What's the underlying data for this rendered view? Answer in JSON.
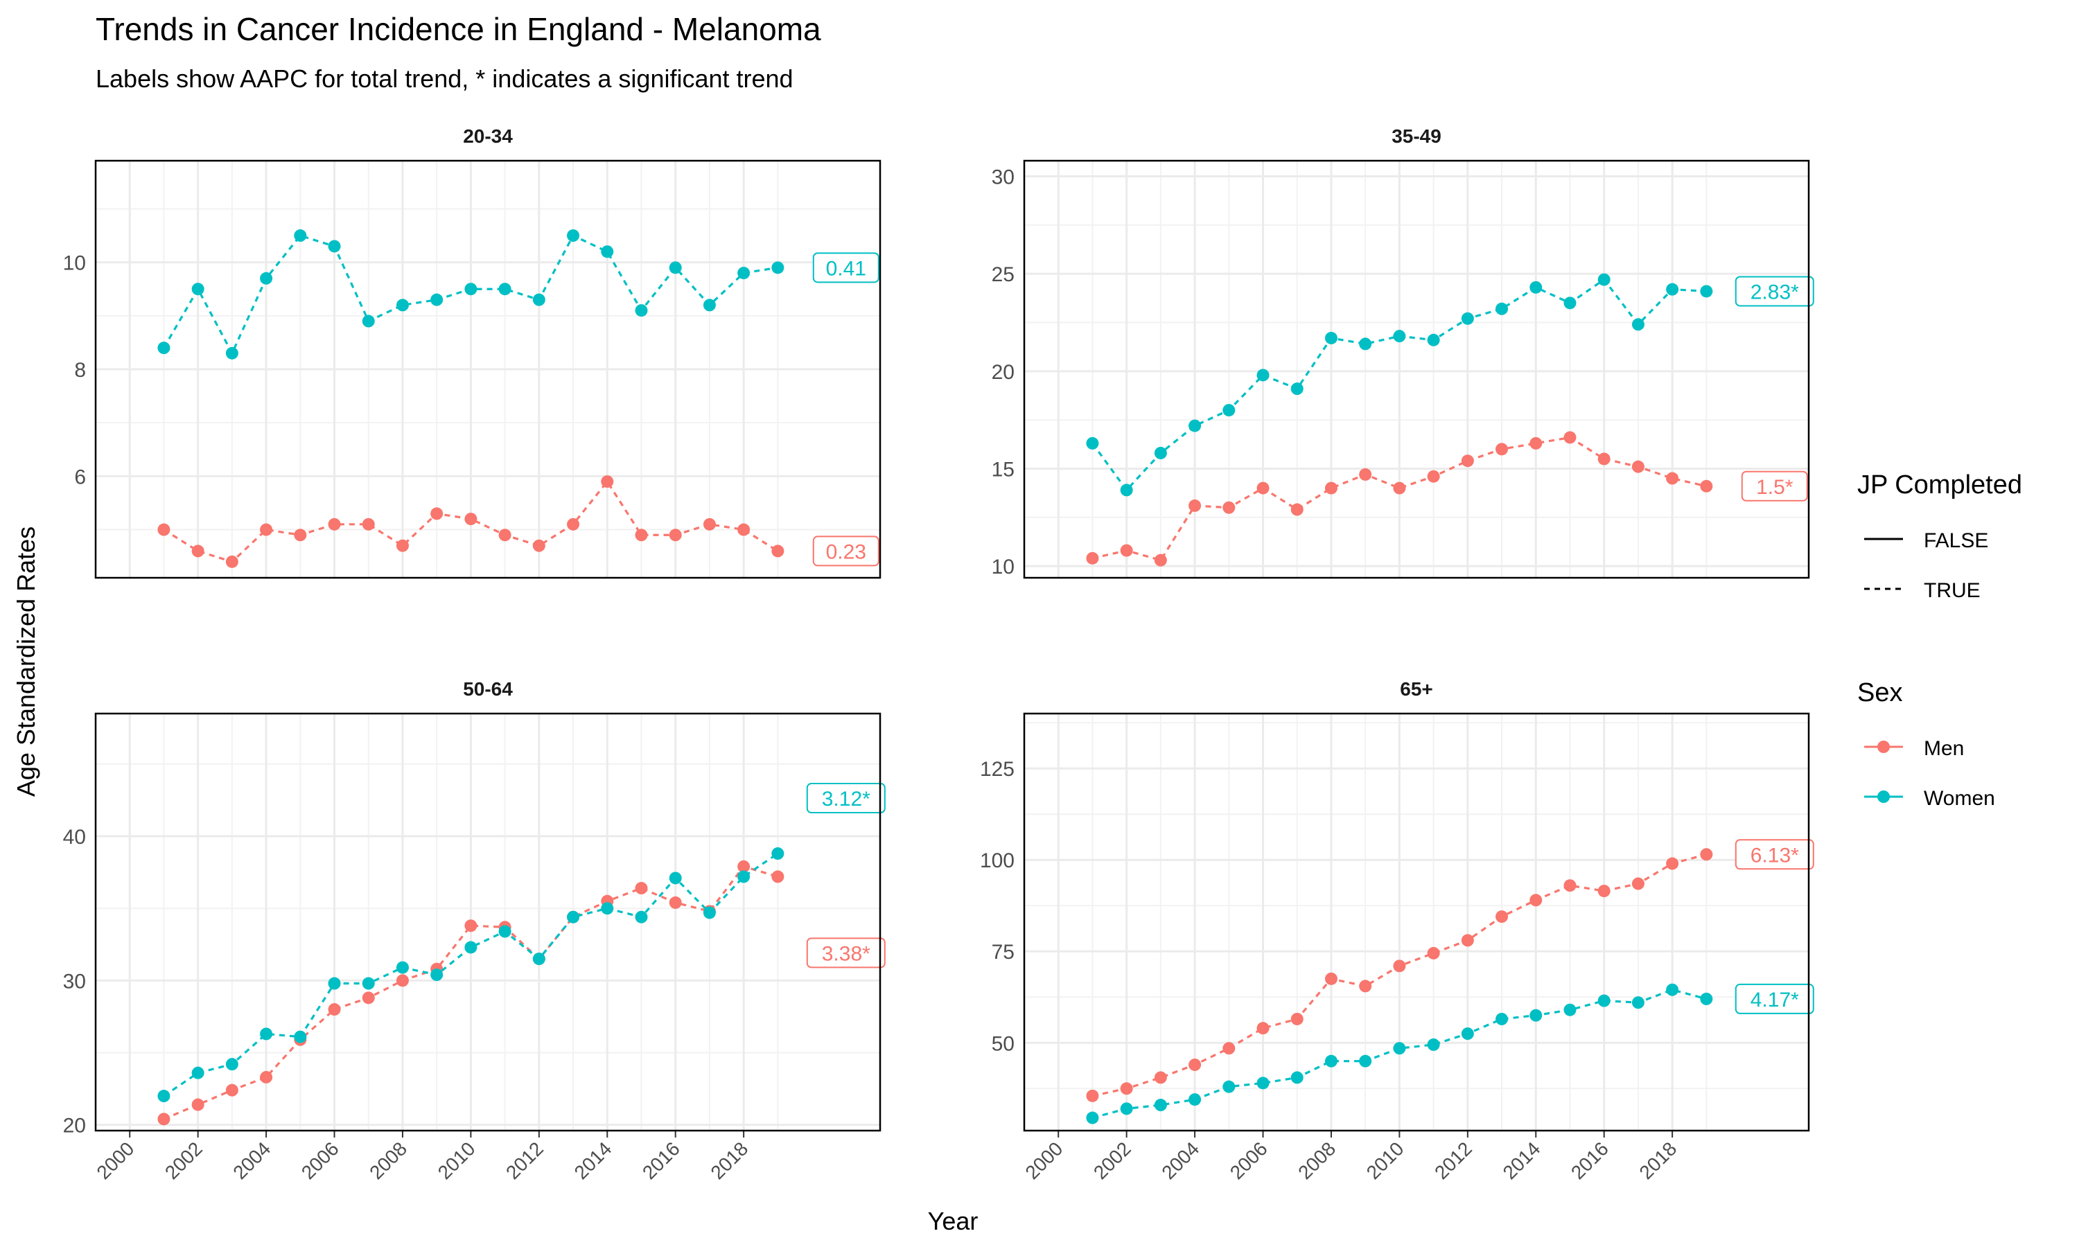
{
  "title": "Trends in Cancer Incidence in England - Melanoma",
  "subtitle": "Labels show AAPC for total trend, * indicates a significant trend",
  "ylabel": "Age Standardized Rates",
  "xlabel": "Year",
  "legend": {
    "linetype": {
      "title": "JP Completed",
      "items": [
        "FALSE",
        "TRUE"
      ]
    },
    "sex": {
      "title": "Sex",
      "items": [
        "Men",
        "Women"
      ]
    }
  },
  "colors": {
    "men": "#F8766D",
    "women": "#00BFC4"
  },
  "chart_data": {
    "type": "line",
    "x_ticks": [
      2000,
      2002,
      2004,
      2006,
      2008,
      2010,
      2012,
      2014,
      2016,
      2018
    ],
    "years": [
      2001,
      2002,
      2003,
      2004,
      2005,
      2006,
      2007,
      2008,
      2009,
      2010,
      2011,
      2012,
      2013,
      2014,
      2015,
      2016,
      2017,
      2018,
      2019
    ],
    "panels": [
      {
        "label": "20-34",
        "ylim": [
          4.1,
          11.9
        ],
        "y_ticks": [
          6,
          8,
          10
        ],
        "series": [
          {
            "name": "Men",
            "label": "0.23",
            "values": [
              5.0,
              4.6,
              4.4,
              5.0,
              4.9,
              5.1,
              5.1,
              4.7,
              5.3,
              5.2,
              4.9,
              4.7,
              5.1,
              5.9,
              4.9,
              4.9,
              5.1,
              5.0,
              4.6
            ]
          },
          {
            "name": "Women",
            "label": "0.41",
            "values": [
              8.4,
              9.5,
              8.3,
              9.7,
              10.5,
              10.3,
              8.9,
              9.2,
              9.3,
              9.5,
              9.5,
              9.3,
              10.5,
              10.2,
              9.1,
              9.9,
              9.2,
              9.8,
              9.9
            ]
          }
        ]
      },
      {
        "label": "35-49",
        "ylim": [
          9.4,
          30.8
        ],
        "y_ticks": [
          10,
          15,
          20,
          25,
          30
        ],
        "series": [
          {
            "name": "Men",
            "label": "1.5*",
            "values": [
              10.4,
              10.8,
              10.3,
              13.1,
              13.0,
              14.0,
              12.9,
              14.0,
              14.7,
              14.0,
              14.6,
              15.4,
              16.0,
              16.3,
              16.6,
              15.5,
              15.1,
              14.5,
              14.1
            ]
          },
          {
            "name": "Women",
            "label": "2.83*",
            "values": [
              16.3,
              13.9,
              15.8,
              17.2,
              18.0,
              19.8,
              19.1,
              21.7,
              21.4,
              21.8,
              21.6,
              22.7,
              23.2,
              24.3,
              23.5,
              24.7,
              22.4,
              24.2,
              24.1
            ]
          }
        ]
      },
      {
        "label": "50-64",
        "ylim": [
          19.6,
          48.5
        ],
        "y_ticks": [
          20,
          30,
          40
        ],
        "series": [
          {
            "name": "Men",
            "label": "3.38*",
            "values": [
              20.4,
              21.4,
              22.4,
              23.3,
              25.9,
              28.0,
              28.8,
              30.0,
              30.8,
              33.8,
              33.7,
              31.5,
              34.4,
              35.5,
              36.4,
              35.4,
              34.8,
              37.9,
              37.2
            ]
          },
          {
            "name": "Women",
            "label": "3.12*",
            "values": [
              22.0,
              23.6,
              24.2,
              26.3,
              26.1,
              29.8,
              29.8,
              30.9,
              30.4,
              32.3,
              33.4,
              31.5,
              34.4,
              35.0,
              34.4,
              37.1,
              34.7,
              37.2,
              38.8
            ]
          }
        ]
      },
      {
        "label": "65+",
        "ylim": [
          26,
          140
        ],
        "y_ticks": [
          50,
          75,
          100,
          125
        ],
        "series": [
          {
            "name": "Men",
            "label": "6.13*",
            "values": [
              35.5,
              37.5,
              40.5,
              44.0,
              48.5,
              54.0,
              56.5,
              67.5,
              65.5,
              71.0,
              74.5,
              78.0,
              84.5,
              89.0,
              93.0,
              91.5,
              93.5,
              99.0,
              101.5
            ]
          },
          {
            "name": "Women",
            "label": "4.17*",
            "values": [
              29.5,
              32.0,
              33.0,
              34.5,
              38.0,
              39.0,
              40.5,
              45.0,
              45.0,
              48.5,
              49.5,
              52.5,
              56.5,
              57.5,
              59.0,
              61.5,
              61.0,
              64.5,
              62.0
            ]
          }
        ]
      }
    ]
  }
}
